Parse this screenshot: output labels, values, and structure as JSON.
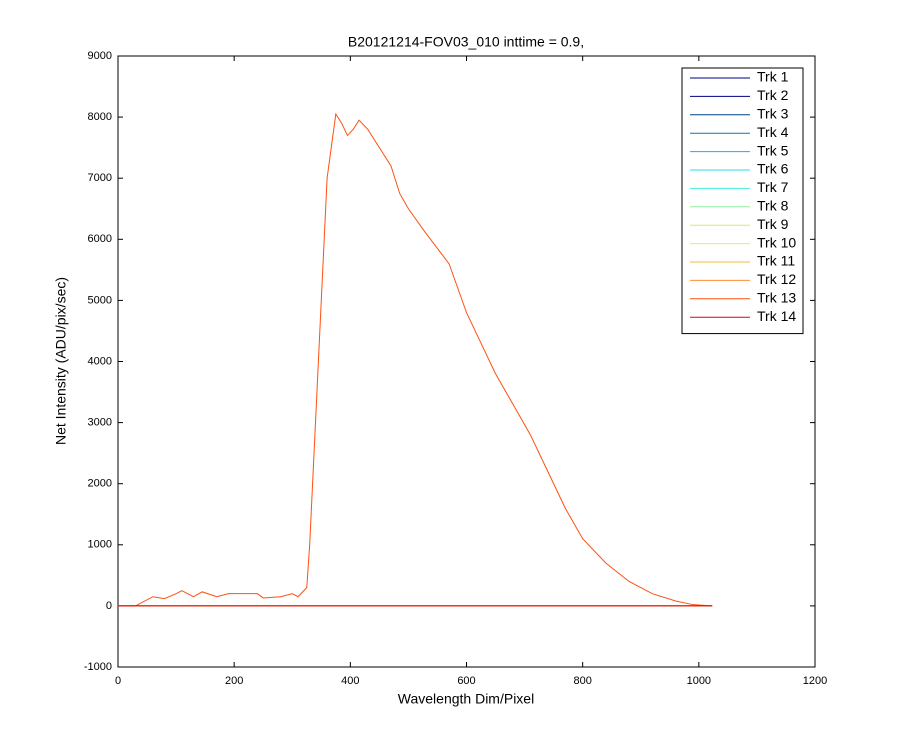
{
  "chart_data": {
    "type": "line",
    "title": "B20121214-FOV03_010 inttime = 0.9,",
    "x_label": "Wavelength Dim/Pixel",
    "y_label": "Net Intensity (ADU/pix/sec)",
    "xlim": [
      0,
      1200
    ],
    "xticks": [
      0,
      200,
      400,
      600,
      800,
      1000,
      1200
    ],
    "ylim": [
      -1000,
      9000
    ],
    "yticks": [
      -1000,
      0,
      1000,
      2000,
      3000,
      4000,
      5000,
      6000,
      7000,
      8000,
      9000
    ],
    "legend": "top-right",
    "x": [
      0,
      30,
      60,
      80,
      100,
      110,
      130,
      145,
      170,
      190,
      220,
      240,
      250,
      280,
      300,
      310,
      320,
      325,
      330,
      345,
      360,
      375,
      385,
      395,
      405,
      415,
      430,
      450,
      470,
      485,
      500,
      530,
      570,
      600,
      620,
      650,
      680,
      710,
      740,
      770,
      800,
      840,
      880,
      920,
      960,
      990,
      1023
    ],
    "series": [
      {
        "name": "Trk 1",
        "color": "#000080",
        "values": [
          0,
          0,
          0,
          0,
          0,
          0,
          0,
          0,
          0,
          0,
          0,
          0,
          0,
          0,
          0,
          0,
          0,
          0,
          0,
          0,
          0,
          0,
          0,
          0,
          0,
          0,
          0,
          0,
          0,
          0,
          0,
          0,
          0,
          0,
          0,
          0,
          0,
          0,
          0,
          0,
          0,
          0,
          0,
          0,
          0,
          0,
          0
        ]
      },
      {
        "name": "Trk 2",
        "color": "#00007f",
        "values": [
          0,
          0,
          0,
          0,
          0,
          0,
          0,
          0,
          0,
          0,
          0,
          0,
          0,
          0,
          0,
          0,
          0,
          0,
          0,
          0,
          0,
          0,
          0,
          0,
          0,
          0,
          0,
          0,
          0,
          0,
          0,
          0,
          0,
          0,
          0,
          0,
          0,
          0,
          0,
          0,
          0,
          0,
          0,
          0,
          0,
          0,
          0
        ]
      },
      {
        "name": "Trk 3",
        "color": "#004080",
        "values": [
          0,
          0,
          0,
          0,
          0,
          0,
          0,
          0,
          0,
          0,
          0,
          0,
          0,
          0,
          0,
          0,
          0,
          0,
          0,
          0,
          0,
          0,
          0,
          0,
          0,
          0,
          0,
          0,
          0,
          0,
          0,
          0,
          0,
          0,
          0,
          0,
          0,
          0,
          0,
          0,
          0,
          0,
          0,
          0,
          0,
          0,
          0
        ]
      },
      {
        "name": "Trk 4",
        "color": "#007f9f",
        "values": [
          0,
          0,
          0,
          0,
          0,
          0,
          0,
          0,
          0,
          0,
          0,
          0,
          0,
          0,
          0,
          0,
          0,
          0,
          0,
          0,
          0,
          0,
          0,
          0,
          0,
          0,
          0,
          0,
          0,
          0,
          0,
          0,
          0,
          0,
          0,
          0,
          0,
          0,
          0,
          0,
          0,
          0,
          0,
          0,
          0,
          0,
          0
        ]
      },
      {
        "name": "Trk 5",
        "color": "#00bfcf",
        "values": [
          0,
          0,
          0,
          0,
          0,
          0,
          0,
          0,
          0,
          0,
          0,
          0,
          0,
          0,
          0,
          0,
          0,
          0,
          0,
          0,
          0,
          0,
          0,
          0,
          0,
          0,
          0,
          0,
          0,
          0,
          0,
          0,
          0,
          0,
          0,
          0,
          0,
          0,
          0,
          0,
          0,
          0,
          0,
          0,
          0,
          0,
          0
        ]
      },
      {
        "name": "Trk 6",
        "color": "#20dfef",
        "values": [
          0,
          0,
          0,
          0,
          0,
          0,
          0,
          0,
          0,
          0,
          0,
          0,
          0,
          0,
          0,
          0,
          0,
          0,
          0,
          0,
          0,
          0,
          0,
          0,
          0,
          0,
          0,
          0,
          0,
          0,
          0,
          0,
          0,
          0,
          0,
          0,
          0,
          0,
          0,
          0,
          0,
          0,
          0,
          0,
          0,
          0,
          0
        ]
      },
      {
        "name": "Trk 7",
        "color": "#40efdf",
        "values": [
          0,
          0,
          0,
          0,
          0,
          0,
          0,
          0,
          0,
          0,
          0,
          0,
          0,
          0,
          0,
          0,
          0,
          0,
          0,
          0,
          0,
          0,
          0,
          0,
          0,
          0,
          0,
          0,
          0,
          0,
          0,
          0,
          0,
          0,
          0,
          0,
          0,
          0,
          0,
          0,
          0,
          0,
          0,
          0,
          0,
          0,
          0
        ]
      },
      {
        "name": "Trk 8",
        "color": "#8fef9f",
        "values": [
          0,
          0,
          0,
          0,
          0,
          0,
          0,
          0,
          0,
          0,
          0,
          0,
          0,
          0,
          0,
          0,
          0,
          0,
          0,
          0,
          0,
          0,
          0,
          0,
          0,
          0,
          0,
          0,
          0,
          0,
          0,
          0,
          0,
          0,
          0,
          0,
          0,
          0,
          0,
          0,
          0,
          0,
          0,
          0,
          0,
          0,
          0
        ]
      },
      {
        "name": "Trk 9",
        "color": "#cfef6f",
        "values": [
          0,
          0,
          0,
          0,
          0,
          0,
          0,
          0,
          0,
          0,
          0,
          0,
          0,
          0,
          0,
          0,
          0,
          0,
          0,
          0,
          0,
          0,
          0,
          0,
          0,
          0,
          0,
          0,
          0,
          0,
          0,
          0,
          0,
          0,
          0,
          0,
          0,
          0,
          0,
          0,
          0,
          0,
          0,
          0,
          0,
          0,
          0
        ]
      },
      {
        "name": "Trk 10",
        "color": "#efef40",
        "values": [
          0,
          0,
          0,
          0,
          0,
          0,
          0,
          0,
          0,
          0,
          0,
          0,
          0,
          0,
          0,
          0,
          0,
          0,
          0,
          0,
          0,
          0,
          0,
          0,
          0,
          0,
          0,
          0,
          0,
          0,
          0,
          0,
          0,
          0,
          0,
          0,
          0,
          0,
          0,
          0,
          0,
          0,
          0,
          0,
          0,
          0,
          0
        ]
      },
      {
        "name": "Trk 11",
        "color": "#efbf30",
        "values": [
          0,
          0,
          0,
          0,
          0,
          0,
          0,
          0,
          0,
          0,
          0,
          0,
          0,
          0,
          0,
          0,
          0,
          0,
          0,
          0,
          0,
          0,
          0,
          0,
          0,
          0,
          0,
          0,
          0,
          0,
          0,
          0,
          0,
          0,
          0,
          0,
          0,
          0,
          0,
          0,
          0,
          0,
          0,
          0,
          0,
          0,
          0
        ]
      },
      {
        "name": "Trk 12",
        "color": "#ff9030",
        "values": [
          0,
          0,
          0,
          0,
          0,
          0,
          0,
          0,
          0,
          0,
          0,
          0,
          0,
          0,
          0,
          0,
          0,
          0,
          0,
          0,
          0,
          0,
          0,
          0,
          0,
          0,
          0,
          0,
          0,
          0,
          0,
          0,
          0,
          0,
          0,
          0,
          0,
          0,
          0,
          0,
          0,
          0,
          0,
          0,
          0,
          0,
          0
        ]
      },
      {
        "name": "Trk 13",
        "color": "#ff5010",
        "values": [
          0,
          0,
          150,
          120,
          200,
          250,
          150,
          230,
          150,
          200,
          200,
          200,
          130,
          150,
          200,
          150,
          250,
          300,
          1000,
          4000,
          7000,
          8050,
          7900,
          7700,
          7800,
          7950,
          7800,
          7500,
          7200,
          6750,
          6500,
          6100,
          5600,
          4800,
          4400,
          3800,
          3300,
          2800,
          2200,
          1600,
          1100,
          700,
          400,
          200,
          80,
          20,
          0
        ]
      },
      {
        "name": "Trk 14",
        "color": "#e00000",
        "values": [
          0,
          0,
          0,
          0,
          0,
          0,
          0,
          0,
          0,
          0,
          0,
          0,
          0,
          0,
          0,
          0,
          0,
          0,
          0,
          0,
          0,
          0,
          0,
          0,
          0,
          0,
          0,
          0,
          0,
          0,
          0,
          0,
          0,
          0,
          0,
          0,
          0,
          0,
          0,
          0,
          0,
          0,
          0,
          0,
          0,
          0,
          0
        ]
      }
    ]
  }
}
